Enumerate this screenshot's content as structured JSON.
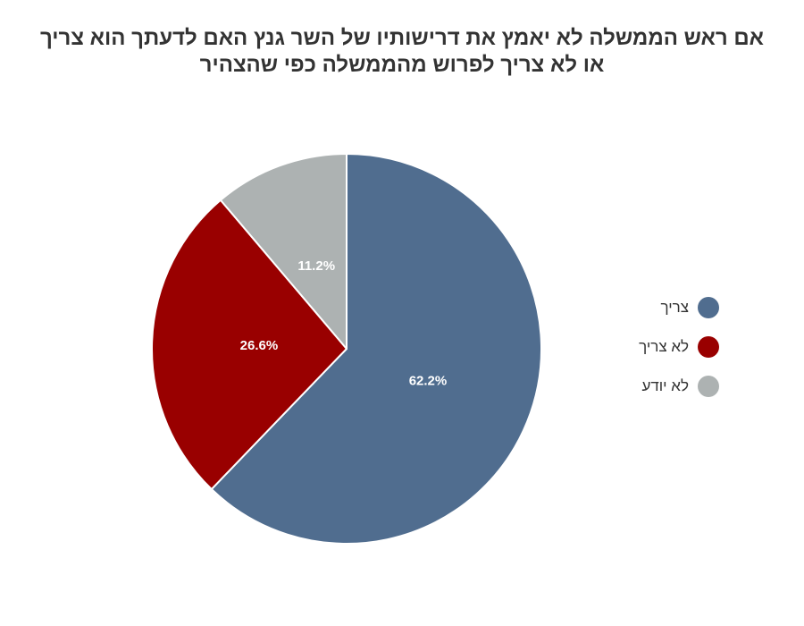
{
  "chart_data": {
    "type": "pie",
    "title": "אם ראש הממשלה לא יאמץ את דרישותיו של השר גנץ האם לדעתך הוא צריך או לא צריך לפרוש מהממשלה כפי שהצהיר",
    "slices": [
      {
        "label": "צריך",
        "value": 62.2,
        "display": "62.2%",
        "color": "#506d8f"
      },
      {
        "label": "לא צריך",
        "value": 26.6,
        "display": "26.6%",
        "color": "#990000"
      },
      {
        "label": "לא יודע",
        "value": 11.2,
        "display": "11.2%",
        "color": "#adb2b2"
      }
    ],
    "legend_position": "right"
  }
}
